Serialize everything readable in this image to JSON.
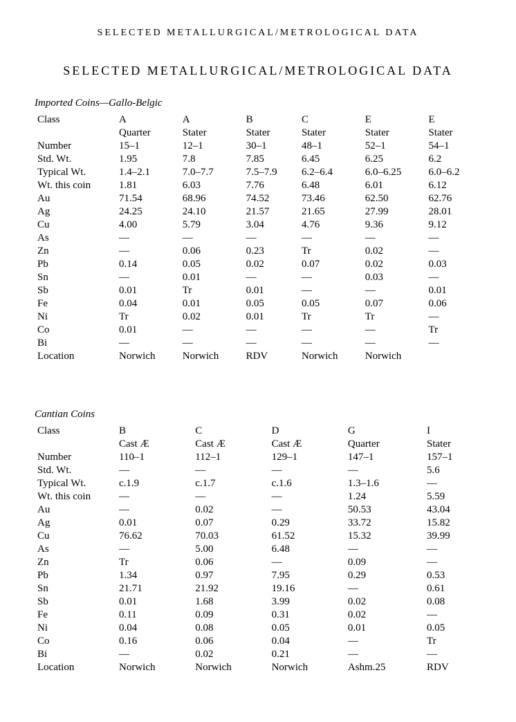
{
  "running_head": "SELECTED METALLURGICAL/METROLOGICAL DATA",
  "main_title": "SELECTED METALLURGICAL/METROLOGICAL DATA",
  "row_labels": [
    "Class",
    "",
    "Number",
    "Std. Wt.",
    "Typical Wt.",
    "Wt. this coin",
    "Au",
    "Ag",
    "Cu",
    "As",
    "Zn",
    "Pb",
    "Sn",
    "Sb",
    "Fe",
    "Ni",
    "Co",
    "Bi",
    "Location"
  ],
  "table1": {
    "title": "Imported Coins—Gallo-Belgic",
    "columns": [
      {
        "class": "A",
        "denom": "Quarter",
        "number": "15–1",
        "stdwt": "1.95",
        "typwt": "1.4–2.1",
        "wtthis": "1.81",
        "Au": "71.54",
        "Ag": "24.25",
        "Cu": "4.00",
        "As": "—",
        "Zn": "—",
        "Pb": "0.14",
        "Sn": "—",
        "Sb": "0.01",
        "Fe": "0.04",
        "Ni": "Tr",
        "Co": "0.01",
        "Bi": "—",
        "Location": "Norwich"
      },
      {
        "class": "A",
        "denom": "Stater",
        "number": "12–1",
        "stdwt": "7.8",
        "typwt": "7.0–7.7",
        "wtthis": "6.03",
        "Au": "68.96",
        "Ag": "24.10",
        "Cu": "5.79",
        "As": "—",
        "Zn": "0.06",
        "Pb": "0.05",
        "Sn": "0.01",
        "Sb": "Tr",
        "Fe": "0.01",
        "Ni": "0.02",
        "Co": "—",
        "Bi": "—",
        "Location": "Norwich"
      },
      {
        "class": "B",
        "denom": "Stater",
        "number": "30–1",
        "stdwt": "7.85",
        "typwt": "7.5–7.9",
        "wtthis": "7.76",
        "Au": "74.52",
        "Ag": "21.57",
        "Cu": "3.04",
        "As": "—",
        "Zn": "0.23",
        "Pb": "0.02",
        "Sn": "—",
        "Sb": "0.01",
        "Fe": "0.05",
        "Ni": "0.01",
        "Co": "—",
        "Bi": "—",
        "Location": "RDV"
      },
      {
        "class": "C",
        "denom": "Stater",
        "number": "48–1",
        "stdwt": "6.45",
        "typwt": "6.2–6.4",
        "wtthis": "6.48",
        "Au": "73.46",
        "Ag": "21.65",
        "Cu": "4.76",
        "As": "—",
        "Zn": "Tr",
        "Pb": "0.07",
        "Sn": "—",
        "Sb": "—",
        "Fe": "0.05",
        "Ni": "Tr",
        "Co": "—",
        "Bi": "—",
        "Location": "Norwich"
      },
      {
        "class": "E",
        "denom": "Stater",
        "number": "52–1",
        "stdwt": "6.25",
        "typwt": "6.0–6.25",
        "wtthis": "6.01",
        "Au": "62.50",
        "Ag": "27.99",
        "Cu": "9.36",
        "As": "—",
        "Zn": "0.02",
        "Pb": "0.02",
        "Sn": "0.03",
        "Sb": "—",
        "Fe": "0.07",
        "Ni": "Tr",
        "Co": "—",
        "Bi": "—",
        "Location": "Norwich"
      },
      {
        "class": "E",
        "denom": "Stater",
        "number": "54–1",
        "stdwt": "6.2",
        "typwt": "6.0–6.2",
        "wtthis": "6.12",
        "Au": "62.76",
        "Ag": "28.01",
        "Cu": "9.12",
        "As": "—",
        "Zn": "—",
        "Pb": "0.03",
        "Sn": "—",
        "Sb": "0.01",
        "Fe": "0.06",
        "Ni": "—",
        "Co": "Tr",
        "Bi": "—",
        "Location": ""
      }
    ]
  },
  "table2": {
    "title": "Cantian Coins",
    "columns": [
      {
        "class": "B",
        "denom": "Cast Æ",
        "number": "110–1",
        "stdwt": "—",
        "typwt": "c.1.9",
        "wtthis": "—",
        "Au": "—",
        "Ag": "0.01",
        "Cu": "76.62",
        "As": "—",
        "Zn": "Tr",
        "Pb": "1.34",
        "Sn": "21.71",
        "Sb": "0.01",
        "Fe": "0.11",
        "Ni": "0.04",
        "Co": "0.16",
        "Bi": "—",
        "Location": "Norwich"
      },
      {
        "class": "C",
        "denom": "Cast Æ",
        "number": "112–1",
        "stdwt": "—",
        "typwt": "c.1.7",
        "wtthis": "—",
        "Au": "0.02",
        "Ag": "0.07",
        "Cu": "70.03",
        "As": "5.00",
        "Zn": "0.06",
        "Pb": "0.97",
        "Sn": "21.92",
        "Sb": "1.68",
        "Fe": "0.09",
        "Ni": "0.08",
        "Co": "0.06",
        "Bi": "0.02",
        "Location": "Norwich"
      },
      {
        "class": "D",
        "denom": "Cast Æ",
        "number": "129–1",
        "stdwt": "—",
        "typwt": "c.1.6",
        "wtthis": "—",
        "Au": "—",
        "Ag": "0.29",
        "Cu": "61.52",
        "As": "6.48",
        "Zn": "—",
        "Pb": "7.95",
        "Sn": "19.16",
        "Sb": "3.99",
        "Fe": "0.31",
        "Ni": "0.05",
        "Co": "0.04",
        "Bi": "0.21",
        "Location": "Norwich"
      },
      {
        "class": "G",
        "denom": "Quarter",
        "number": "147–1",
        "stdwt": "—",
        "typwt": "1.3–1.6",
        "wtthis": "1.24",
        "Au": "50.53",
        "Ag": "33.72",
        "Cu": "15.32",
        "As": "—",
        "Zn": "0.09",
        "Pb": "0.29",
        "Sn": "—",
        "Sb": "0.02",
        "Fe": "0.02",
        "Ni": "0.01",
        "Co": "—",
        "Bi": "—",
        "Location": "Ashm.25"
      },
      {
        "class": "I",
        "denom": "Stater",
        "number": "157–1",
        "stdwt": "5.6",
        "typwt": "—",
        "wtthis": "5.59",
        "Au": "43.04",
        "Ag": "15.82",
        "Cu": "39.99",
        "As": "—",
        "Zn": "—",
        "Pb": "0.53",
        "Sn": "0.61",
        "Sb": "0.08",
        "Fe": "—",
        "Ni": "0.05",
        "Co": "Tr",
        "Bi": "—",
        "Location": "RDV"
      }
    ]
  },
  "row_keys": [
    "class",
    "denom",
    "number",
    "stdwt",
    "typwt",
    "wtthis",
    "Au",
    "Ag",
    "Cu",
    "As",
    "Zn",
    "Pb",
    "Sn",
    "Sb",
    "Fe",
    "Ni",
    "Co",
    "Bi",
    "Location"
  ]
}
